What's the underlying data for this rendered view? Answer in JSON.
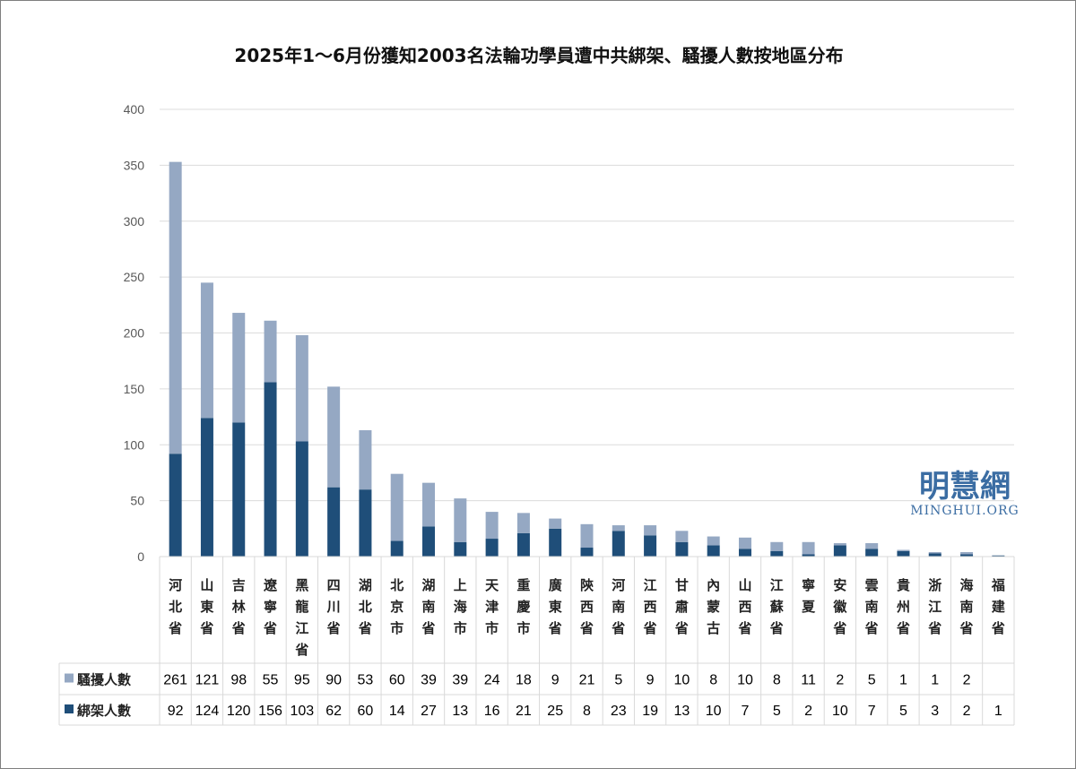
{
  "chart_data": {
    "type": "bar",
    "stacked": true,
    "title": "2025年1～6月份獲知2003名法輪功學員遭中共綁架、騷擾人數按地區分布",
    "categories": [
      "河北省",
      "山東省",
      "吉林省",
      "遼寧省",
      "黑龍江省",
      "四川省",
      "湖北省",
      "北京市",
      "湖南省",
      "上海市",
      "天津市",
      "重慶市",
      "廣東省",
      "陝西省",
      "河南省",
      "江西省",
      "甘肅省",
      "內蒙古",
      "山西省",
      "江蘇省",
      "寧夏",
      "安徽省",
      "雲南省",
      "貴州省",
      "浙江省",
      "海南省",
      "福建省"
    ],
    "series": [
      {
        "name": "騷擾人數",
        "color": "#95a8c3",
        "values": [
          261,
          121,
          98,
          55,
          95,
          90,
          53,
          60,
          39,
          39,
          24,
          18,
          9,
          21,
          5,
          9,
          10,
          8,
          10,
          8,
          11,
          2,
          5,
          1,
          1,
          2,
          null
        ]
      },
      {
        "name": "綁架人數",
        "color": "#1f4e79",
        "values": [
          92,
          124,
          120,
          156,
          103,
          62,
          60,
          14,
          27,
          13,
          16,
          21,
          25,
          8,
          23,
          19,
          13,
          10,
          7,
          5,
          2,
          10,
          7,
          5,
          3,
          2,
          1
        ]
      }
    ],
    "ylim": [
      0,
      400
    ],
    "yticks": [
      0,
      50,
      100,
      150,
      200,
      250,
      300,
      350,
      400
    ],
    "grid": true,
    "legend": "data-table"
  },
  "watermark": {
    "cn": "明慧網",
    "en": "MINGHUI.ORG"
  }
}
